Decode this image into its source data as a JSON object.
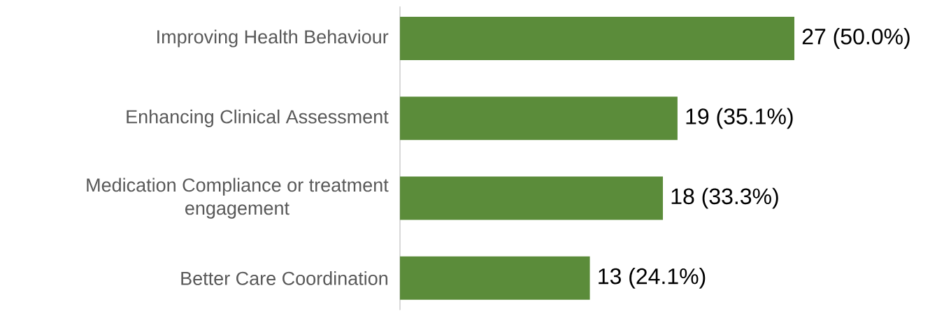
{
  "chart_data": {
    "type": "bar",
    "orientation": "horizontal",
    "categories": [
      "Improving Health Behaviour",
      "Enhancing Clinical Assessment",
      "Medication Compliance or treatment engagement",
      "Better Care Coordination"
    ],
    "values": [
      27,
      19,
      18,
      13
    ],
    "value_labels": [
      "27 (50.0%)",
      "19 (35.1%)",
      "18 (33.3%)",
      "13 (24.1%)"
    ],
    "color": "#5b8c3a"
  }
}
